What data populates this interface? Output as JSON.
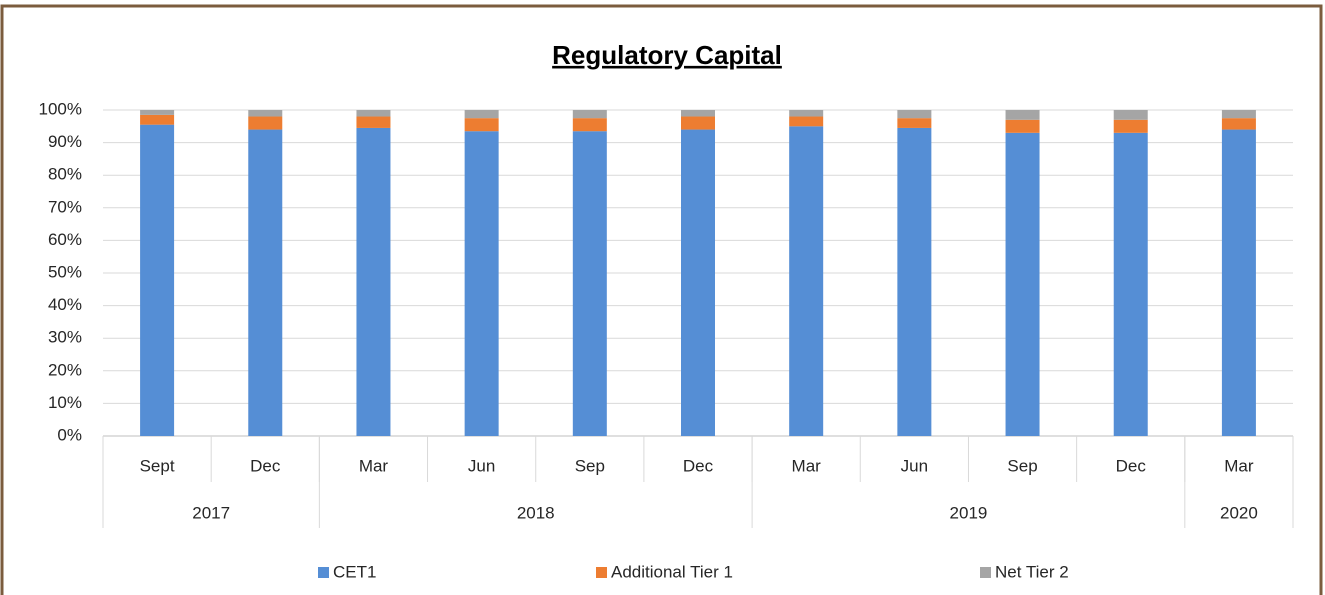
{
  "chart_data": {
    "type": "stacked_bar_100",
    "title": "Regulatory Capital",
    "categories": [
      "Sept",
      "Dec",
      "Mar",
      "Jun",
      "Sep",
      "Dec",
      "Mar",
      "Jun",
      "Sep",
      "Dec",
      "Mar"
    ],
    "groups": [
      {
        "name": "2017",
        "count": 2
      },
      {
        "name": "2018",
        "count": 4
      },
      {
        "name": "2019",
        "count": 4
      },
      {
        "name": "2020",
        "count": 1
      }
    ],
    "series": [
      {
        "name": "CET1",
        "color": "#558ed5",
        "values": [
          95.5,
          94,
          94.5,
          93.5,
          93.5,
          94,
          95,
          94.5,
          93,
          93,
          94
        ]
      },
      {
        "name": "Additional Tier 1",
        "color": "#ed7d31",
        "values": [
          3,
          4,
          3.5,
          4,
          4,
          4,
          3,
          3,
          4,
          4,
          3.5
        ]
      },
      {
        "name": "Net Tier 2",
        "color": "#a5a5a5",
        "values": [
          1.5,
          2,
          2,
          2.5,
          2.5,
          2,
          2,
          2.5,
          3,
          3,
          2.5
        ]
      }
    ],
    "ylim": [
      0,
      100
    ],
    "yticks": [
      {
        "value": 0,
        "label": "0%"
      },
      {
        "value": 10,
        "label": "10%"
      },
      {
        "value": 20,
        "label": "20%"
      },
      {
        "value": 30,
        "label": "30%"
      },
      {
        "value": 40,
        "label": "40%"
      },
      {
        "value": 50,
        "label": "50%"
      },
      {
        "value": 60,
        "label": "60%"
      },
      {
        "value": 70,
        "label": "70%"
      },
      {
        "value": 80,
        "label": "80%"
      },
      {
        "value": 90,
        "label": "90%"
      },
      {
        "value": 100,
        "label": "100%"
      }
    ],
    "grid": true,
    "legend": "bottom"
  }
}
